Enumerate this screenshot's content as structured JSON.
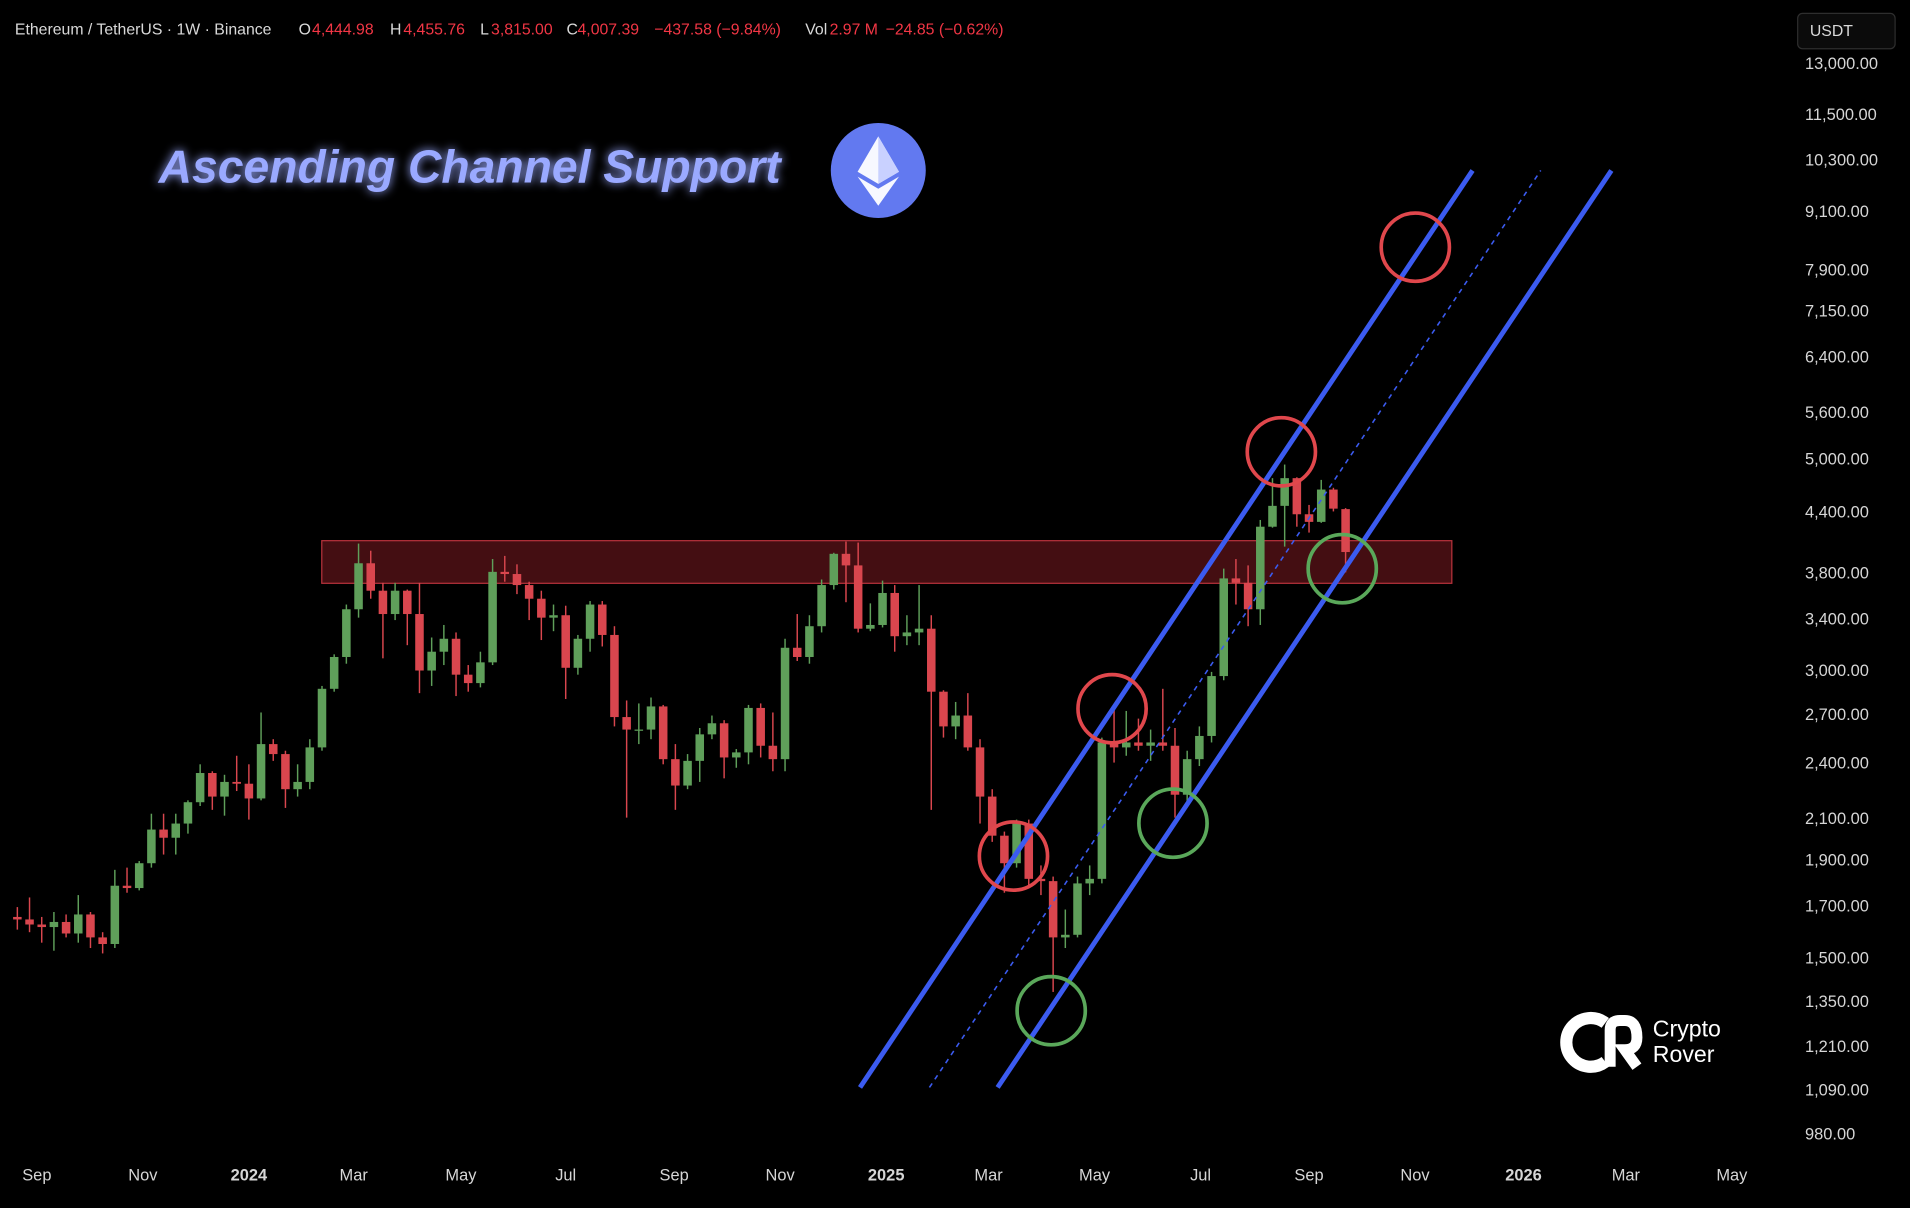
{
  "header": {
    "symbol": "Ethereum / TetherUS · 1W · Binance",
    "fields": [
      {
        "key": "O",
        "text": "4,444.98"
      },
      {
        "key": "H",
        "text": "4,455.76"
      },
      {
        "key": "L",
        "text": "3,815.00"
      },
      {
        "key": "C",
        "text": "4,007.39"
      }
    ],
    "change": "−437.58 (−9.84%)",
    "volume_key": "Vol",
    "volume": "2.97 M",
    "volume_change": "−24.85 (−0.62%)",
    "currency": "USDT"
  },
  "chart_data": {
    "type": "candlestick",
    "title": "Ascending Channel Support",
    "watermark": [
      "Crypto",
      "Rover"
    ],
    "log_scale": true,
    "grid": false,
    "up_color": "#5f9f5a",
    "down_color": "#d9464e",
    "xlim": [
      -20.4,
      126.3
    ],
    "xticks": [
      {
        "value": -17.4,
        "label": "Sep"
      },
      {
        "value": -8.7,
        "label": "Nov"
      },
      {
        "value": 0,
        "label": "2024"
      },
      {
        "value": 8.6,
        "label": "Mar"
      },
      {
        "value": 17.4,
        "label": "May"
      },
      {
        "value": 26.0,
        "label": "Jul"
      },
      {
        "value": 34.9,
        "label": "Sep"
      },
      {
        "value": 43.6,
        "label": "Nov"
      },
      {
        "value": 52.3,
        "label": "2025"
      },
      {
        "value": 60.7,
        "label": "Mar"
      },
      {
        "value": 69.4,
        "label": "May"
      },
      {
        "value": 78.1,
        "label": "Jul"
      },
      {
        "value": 87.0,
        "label": "Sep"
      },
      {
        "value": 95.7,
        "label": "Nov"
      },
      {
        "value": 104.6,
        "label": "2026"
      },
      {
        "value": 113.0,
        "label": "Mar"
      },
      {
        "value": 121.7,
        "label": "May"
      }
    ],
    "ylim": [
      930,
      15200
    ],
    "yticks": [
      {
        "value": 13000,
        "label": "13,000.00"
      },
      {
        "value": 11500,
        "label": "11,500.00"
      },
      {
        "value": 10300,
        "label": "10,300.00"
      },
      {
        "value": 9100,
        "label": "9,100.00"
      },
      {
        "value": 7900,
        "label": "7,900.00"
      },
      {
        "value": 7150,
        "label": "7,150.00"
      },
      {
        "value": 6400,
        "label": "6,400.00"
      },
      {
        "value": 5600,
        "label": "5,600.00"
      },
      {
        "value": 5000,
        "label": "5,000.00"
      },
      {
        "value": 4400,
        "label": "4,400.00"
      },
      {
        "value": 3800,
        "label": "3,800.00"
      },
      {
        "value": 3400,
        "label": "3,400.00"
      },
      {
        "value": 3000,
        "label": "3,000.00"
      },
      {
        "value": 2700,
        "label": "2,700.00"
      },
      {
        "value": 2400,
        "label": "2,400.00"
      },
      {
        "value": 2100,
        "label": "2,100.00"
      },
      {
        "value": 1900,
        "label": "1,900.00"
      },
      {
        "value": 1700,
        "label": "1,700.00"
      },
      {
        "value": 1500,
        "label": "1,500.00"
      },
      {
        "value": 1350,
        "label": "1,350.00"
      },
      {
        "value": 1210,
        "label": "1,210.00"
      },
      {
        "value": 1090,
        "label": "1,090.00"
      },
      {
        "value": 980,
        "label": "980.00"
      }
    ],
    "x": [
      -19,
      -18,
      -17,
      -16,
      -15,
      -14,
      -13,
      -12,
      -11,
      -10,
      -9,
      -8,
      -7,
      -6,
      -5,
      -4,
      -3,
      -2,
      -1,
      0,
      1,
      2,
      3,
      4,
      5,
      6,
      7,
      8,
      9,
      10,
      11,
      12,
      13,
      14,
      15,
      16,
      17,
      18,
      19,
      20,
      21,
      22,
      23,
      24,
      25,
      26,
      27,
      28,
      29,
      30,
      31,
      32,
      33,
      34,
      35,
      36,
      37,
      38,
      39,
      40,
      41,
      42,
      43,
      44,
      45,
      46,
      47,
      48,
      49,
      50,
      51,
      52,
      53,
      54,
      55,
      56,
      57,
      58,
      59,
      60,
      61,
      62,
      63,
      64,
      65,
      66,
      67,
      68,
      69,
      70,
      71,
      72,
      73,
      74,
      75,
      76,
      77,
      78,
      79,
      80,
      81,
      82,
      83,
      84,
      85,
      86,
      87,
      88,
      89,
      90
    ],
    "open": [
      1660,
      1650,
      1630,
      1620,
      1640,
      1595,
      1670,
      1580,
      1555,
      1790,
      1780,
      1890,
      2050,
      2010,
      2080,
      2190,
      2350,
      2220,
      2300,
      2290,
      2210,
      2520,
      2460,
      2260,
      2300,
      2500,
      2880,
      3110,
      3490,
      3900,
      3650,
      3450,
      3650,
      3450,
      3010,
      3150,
      3250,
      2980,
      2920,
      3070,
      3820,
      3800,
      3700,
      3580,
      3420,
      3440,
      3030,
      3250,
      3530,
      3280,
      2690,
      2610,
      2610,
      2760,
      2430,
      2280,
      2420,
      2580,
      2650,
      2440,
      2470,
      2750,
      2510,
      2430,
      3180,
      3110,
      3350,
      3700,
      3990,
      3880,
      3330,
      3360,
      3630,
      3270,
      3300,
      3330,
      2860,
      2630,
      2700,
      2500,
      2220,
      2020,
      1890,
      2080,
      1820,
      1810,
      1580,
      1590,
      1800,
      1820,
      2530,
      2500,
      2530,
      2510,
      2530,
      2510,
      2230,
      2430,
      2570,
      2970,
      3760,
      3720,
      3490,
      4260,
      4480,
      4790,
      4390,
      4310,
      4660,
      4444.98
    ],
    "high": [
      1700,
      1740,
      1660,
      1680,
      1670,
      1750,
      1680,
      1600,
      1860,
      1870,
      1900,
      2130,
      2130,
      2130,
      2200,
      2400,
      2360,
      2340,
      2450,
      2400,
      2720,
      2550,
      2480,
      2400,
      2550,
      2900,
      3130,
      3530,
      4090,
      4020,
      3720,
      3720,
      3660,
      3720,
      3260,
      3360,
      3300,
      3050,
      3150,
      3940,
      3970,
      3890,
      3730,
      3650,
      3530,
      3520,
      3280,
      3560,
      3560,
      3350,
      2800,
      2780,
      2820,
      2770,
      2520,
      2460,
      2620,
      2700,
      2670,
      2490,
      2770,
      2780,
      2720,
      3250,
      3450,
      3440,
      3750,
      4000,
      4110,
      4100,
      3540,
      3740,
      3700,
      3440,
      3700,
      3440,
      2870,
      2790,
      2850,
      2550,
      2260,
      2040,
      2100,
      2100,
      1880,
      1830,
      1690,
      1830,
      1880,
      2560,
      2740,
      2730,
      2680,
      2610,
      2880,
      2620,
      2480,
      2630,
      3000,
      3850,
      3940,
      3880,
      4330,
      4790,
      4950,
      4800,
      4490,
      4770,
      4680,
      4455.76
    ],
    "low": [
      1610,
      1600,
      1560,
      1530,
      1580,
      1560,
      1540,
      1520,
      1540,
      1760,
      1770,
      1870,
      1930,
      1930,
      2030,
      2170,
      2150,
      2120,
      2250,
      2100,
      2200,
      2420,
      2160,
      2220,
      2260,
      2480,
      2860,
      3060,
      3420,
      3580,
      3100,
      3400,
      3200,
      2850,
      2900,
      3050,
      2830,
      2860,
      2890,
      3050,
      3730,
      3620,
      3400,
      3240,
      3310,
      2810,
      2980,
      3150,
      3190,
      2630,
      2110,
      2520,
      2550,
      2400,
      2150,
      2260,
      2300,
      2550,
      2320,
      2380,
      2400,
      2440,
      2360,
      2360,
      3080,
      3060,
      3300,
      3660,
      3550,
      3300,
      3310,
      3340,
      3150,
      3200,
      3200,
      2150,
      2560,
      2550,
      2480,
      2080,
      1990,
      1760,
      1870,
      1780,
      1750,
      1385,
      1540,
      1580,
      1750,
      1800,
      2410,
      2450,
      2480,
      2420,
      2480,
      2110,
      2180,
      2390,
      2530,
      2940,
      3530,
      3350,
      3360,
      4250,
      4060,
      4260,
      4200,
      4300,
      4420,
      3815
    ],
    "close": [
      1650,
      1630,
      1620,
      1640,
      1595,
      1670,
      1580,
      1555,
      1790,
      1780,
      1890,
      2050,
      2010,
      2080,
      2190,
      2350,
      2220,
      2300,
      2290,
      2210,
      2520,
      2460,
      2260,
      2300,
      2500,
      2880,
      3110,
      3490,
      3900,
      3650,
      3450,
      3650,
      3450,
      3010,
      3150,
      3250,
      2980,
      2920,
      3070,
      3820,
      3800,
      3700,
      3580,
      3420,
      3440,
      3030,
      3250,
      3530,
      3280,
      2690,
      2610,
      2610,
      2760,
      2430,
      2280,
      2420,
      2580,
      2650,
      2440,
      2470,
      2750,
      2510,
      2430,
      3180,
      3110,
      3350,
      3700,
      3990,
      3880,
      3330,
      3360,
      3630,
      3270,
      3300,
      3330,
      2860,
      2630,
      2700,
      2500,
      2220,
      2020,
      1890,
      2080,
      1820,
      1810,
      1580,
      1590,
      1800,
      1820,
      2530,
      2500,
      2530,
      2510,
      2530,
      2510,
      2230,
      2430,
      2570,
      2970,
      3760,
      3720,
      3490,
      4260,
      4480,
      4790,
      4390,
      4310,
      4660,
      4450,
      4007.39
    ]
  }
}
